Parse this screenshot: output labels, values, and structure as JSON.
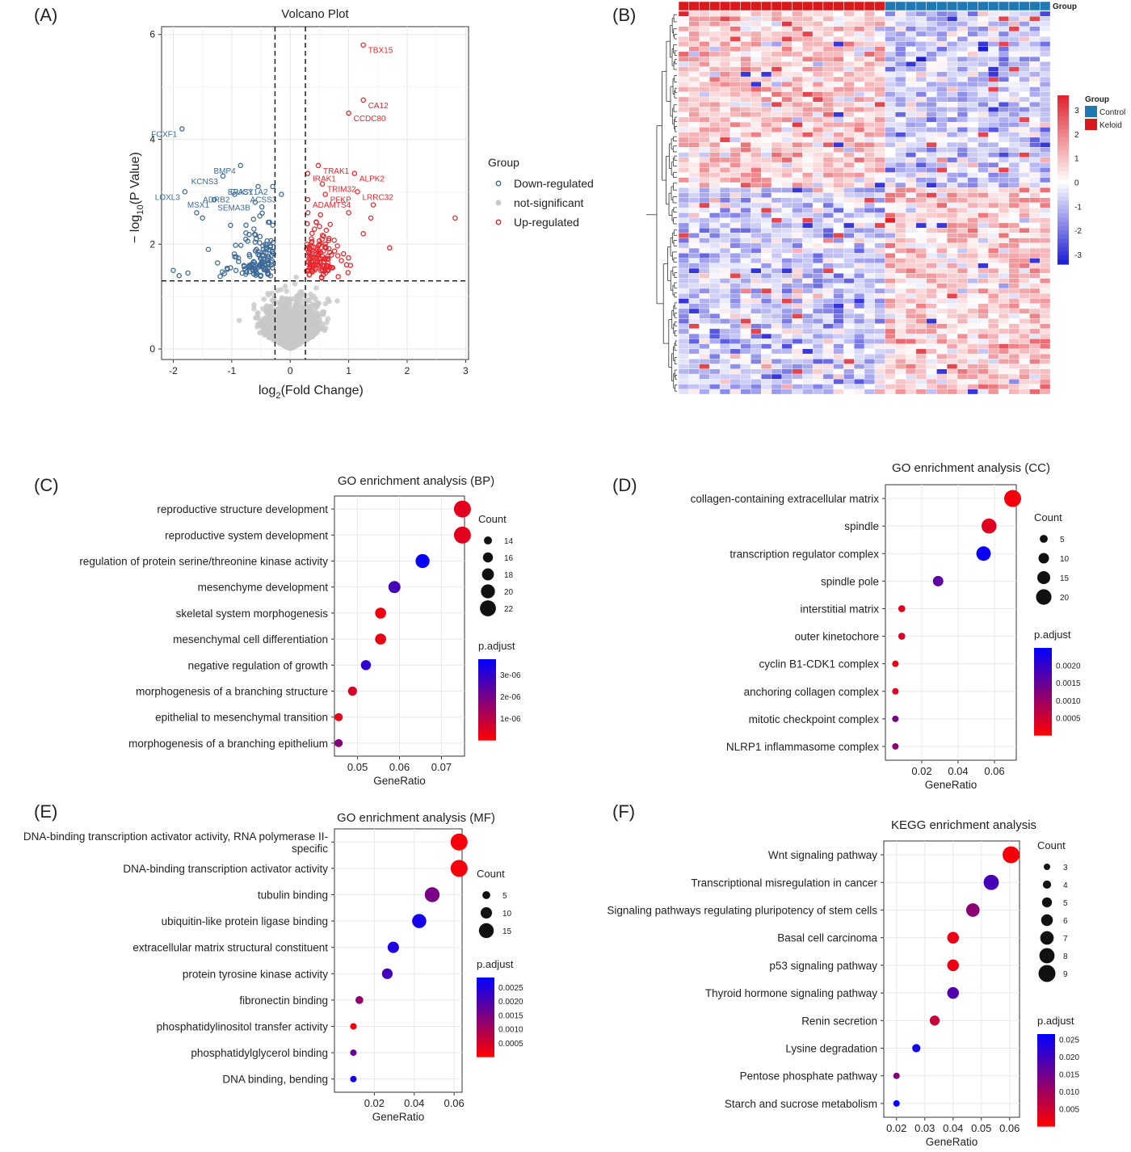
{
  "panel_labels": [
    "(A)",
    "(B)",
    "(C)",
    "(D)",
    "(E)",
    "(F)"
  ],
  "colors": {
    "up": "#e8262c",
    "down": "#3e6a98",
    "ns": "#c8c8c8",
    "keloid": "#d9191c",
    "control": "#1f78b4",
    "heat_low": "#1b1bd6",
    "heat_mid": "#ffffff",
    "heat_high": "#e0212a",
    "padj_low": "#ff0000",
    "padj_high": "#0000ff"
  },
  "chart_data": [
    {
      "id": "A",
      "type": "scatter",
      "title": "Volcano Plot",
      "xlabel": "log2(Fold Change)",
      "ylabel": "− log10(P Value)",
      "xlim": [
        -2.2,
        3.05
      ],
      "ylim": [
        -0.2,
        6.15
      ],
      "x_ticks": [
        -2,
        -1,
        0,
        1,
        2,
        3
      ],
      "y_ticks": [
        0,
        2,
        4,
        6
      ],
      "thresholds": {
        "x": [
          -0.26,
          0.26
        ],
        "y": 1.3
      },
      "legend_title": "Group",
      "legend_position": "right",
      "legend": [
        "Down-regulated",
        "not-significant",
        "Up-regulated"
      ],
      "grid": true,
      "labeled_points": [
        {
          "label": "TBX15",
          "x": 1.25,
          "y": 5.8,
          "group": "up"
        },
        {
          "label": "CA12",
          "x": 1.25,
          "y": 4.75,
          "group": "up"
        },
        {
          "label": "CCDC80",
          "x": 1.0,
          "y": 4.5,
          "group": "up"
        },
        {
          "label": "TRAK1",
          "x": 0.48,
          "y": 3.5,
          "group": "up"
        },
        {
          "label": "ALPK2",
          "x": 1.1,
          "y": 3.35,
          "group": "up"
        },
        {
          "label": "TRIM32",
          "x": 0.55,
          "y": 3.15,
          "group": "up"
        },
        {
          "label": "IRAK1",
          "x": 0.3,
          "y": 3.35,
          "group": "up"
        },
        {
          "label": "LRRC32",
          "x": 1.15,
          "y": 3.0,
          "group": "up"
        },
        {
          "label": "PFKP",
          "x": 0.6,
          "y": 2.95,
          "group": "up"
        },
        {
          "label": "ADAMTS4",
          "x": 0.3,
          "y": 2.85,
          "group": "up"
        },
        {
          "label": "FOXF1",
          "x": -1.85,
          "y": 4.2,
          "group": "down"
        },
        {
          "label": "LOXL3",
          "x": -1.8,
          "y": 3.0,
          "group": "down"
        },
        {
          "label": "KCNS3",
          "x": -1.15,
          "y": 3.3,
          "group": "down"
        },
        {
          "label": "BMP4",
          "x": -0.85,
          "y": 3.5,
          "group": "down"
        },
        {
          "label": "EPAS1",
          "x": -0.55,
          "y": 3.1,
          "group": "down"
        },
        {
          "label": "GUCY1A2",
          "x": -0.3,
          "y": 3.1,
          "group": "down"
        },
        {
          "label": "ADRB2",
          "x": -0.95,
          "y": 2.95,
          "group": "down"
        },
        {
          "label": "MSX1",
          "x": -1.3,
          "y": 2.85,
          "group": "down"
        },
        {
          "label": "SEMA3B",
          "x": -0.6,
          "y": 2.8,
          "group": "down"
        },
        {
          "label": "ACSS3",
          "x": -0.15,
          "y": 2.95,
          "group": "down"
        }
      ]
    },
    {
      "id": "B",
      "type": "heatmap",
      "annotation_title": "Group",
      "legend_title": "Group",
      "legend_items": [
        "Control",
        "Keloid"
      ],
      "colorbar_ticks": [
        3,
        2,
        1,
        0,
        -1,
        -2,
        -3
      ],
      "colorbar_range": [
        -3.4,
        3.6
      ],
      "n_keloid": 20,
      "n_control": 16,
      "n_rows": 76,
      "row_split": 35
    },
    {
      "id": "C",
      "type": "scatter",
      "title": "GO enrichment analysis (BP)",
      "xlabel": "GeneRatio",
      "xlim": [
        0.0445,
        0.0755
      ],
      "x_ticks": [
        0.05,
        0.06,
        0.07
      ],
      "x_tick_labels": [
        "0.05",
        "0.06",
        "0.07"
      ],
      "categories": [
        "reproductive structure development",
        "reproductive system development",
        "regulation of protein serine/threonine kinase activity",
        "mesenchyme development",
        "skeletal system morphogenesis",
        "mesenchymal cell differentiation",
        "negative regulation of growth",
        "morphogenesis of a branching structure",
        "epithelial to mesenchymal transition",
        "morphogenesis of a branching epithelium"
      ],
      "gene_ratio": [
        0.075,
        0.075,
        0.0655,
        0.0588,
        0.0555,
        0.0555,
        0.052,
        0.0488,
        0.0455,
        0.0455
      ],
      "count": [
        23,
        23,
        20,
        18,
        17,
        17,
        16,
        15,
        14,
        14
      ],
      "p_adjust": [
        4e-07,
        4e-07,
        3.6e-06,
        2.7e-06,
        2e-07,
        3e-07,
        3e-06,
        6e-07,
        3e-07,
        1.8e-06
      ],
      "padj_range": [
        0,
        3.7e-06
      ],
      "size_legend": {
        "title": "Count",
        "values": [
          14,
          16,
          18,
          20,
          22
        ]
      },
      "color_legend": {
        "title": "p.adjust",
        "ticks": [
          3e-06,
          2e-06,
          1e-06
        ],
        "tick_labels": [
          "3e-06",
          "2e-06",
          "1e-06"
        ]
      },
      "size_range": [
        14,
        23
      ]
    },
    {
      "id": "D",
      "type": "scatter",
      "title": "GO enrichment analysis (CC)",
      "xlabel": "GeneRatio",
      "xlim": [
        0.0,
        0.072
      ],
      "x_ticks": [
        0.02,
        0.04,
        0.06
      ],
      "x_tick_labels": [
        "0.02",
        "0.04",
        "0.06"
      ],
      "categories": [
        "collagen-containing extracellular matrix",
        "spindle",
        "transcription regulator complex",
        "spindle pole",
        "interstitial matrix",
        "outer kinetochore",
        "cyclin B1-CDK1 complex",
        "anchoring collagen complex",
        "mitotic checkpoint complex",
        "NLRP1 inflammasome complex"
      ],
      "gene_ratio": [
        0.07,
        0.057,
        0.054,
        0.029,
        0.009,
        0.009,
        0.0055,
        0.0055,
        0.0055,
        0.0055
      ],
      "count": [
        23,
        19,
        18,
        10,
        3,
        3,
        2,
        2,
        2,
        2
      ],
      "p_adjust": [
        0.0001,
        0.0003,
        0.0024,
        0.0016,
        0.0003,
        0.0004,
        0.0002,
        0.0003,
        0.0013,
        0.0011
      ],
      "padj_range": [
        0,
        0.0025
      ],
      "size_legend": {
        "title": "Count",
        "values": [
          5,
          10,
          15,
          20
        ]
      },
      "color_legend": {
        "title": "p.adjust",
        "ticks": [
          0.002,
          0.0015,
          0.001,
          0.0005
        ],
        "tick_labels": [
          "0.0020",
          "0.0015",
          "0.0010",
          "0.0005"
        ]
      },
      "size_range": [
        2,
        23
      ]
    },
    {
      "id": "E",
      "type": "scatter",
      "title": "GO enrichment analysis (MF)",
      "xlabel": "GeneRatio",
      "xlim": [
        0.0,
        0.064
      ],
      "x_ticks": [
        0.02,
        0.04,
        0.06
      ],
      "x_tick_labels": [
        "0.02",
        "0.04",
        "0.06"
      ],
      "categories": [
        "DNA-binding transcription activator activity, RNA polymerase II-specific",
        "DNA-binding transcription activator activity",
        "tubulin binding",
        "ubiquitin-like protein ligase binding",
        "extracellular matrix structural constituent",
        "protein tyrosine kinase activity",
        "fibronectin binding",
        "phosphatidylinositol transfer activity",
        "phosphatidylglycerol binding",
        "DNA binding, bending"
      ],
      "category_lines": [
        [
          "DNA-binding transcription activator activity, RNA polymerase II-",
          "specific"
        ]
      ],
      "gene_ratio": [
        0.0625,
        0.0625,
        0.049,
        0.0425,
        0.0295,
        0.0265,
        0.0125,
        0.0095,
        0.0095,
        0.0095
      ],
      "count": [
        18,
        18,
        15,
        14,
        10,
        9,
        5,
        3,
        3,
        3
      ],
      "p_adjust": [
        0.0001,
        0.0001,
        0.0015,
        0.0026,
        0.0025,
        0.0021,
        0.0012,
        0.0001,
        0.0017,
        0.0026
      ],
      "padj_range": [
        0,
        0.00285
      ],
      "size_legend": {
        "title": "Count",
        "values": [
          5,
          10,
          15
        ]
      },
      "color_legend": {
        "title": "p.adjust",
        "ticks": [
          0.0025,
          0.002,
          0.0015,
          0.001,
          0.0005
        ],
        "tick_labels": [
          "0.0025",
          "0.0020",
          "0.0015",
          "0.0010",
          "0.0005"
        ]
      },
      "size_range": [
        3,
        18
      ]
    },
    {
      "id": "F",
      "type": "scatter",
      "title": "KEGG enrichment analysis",
      "xlabel": "GeneRatio",
      "xlim": [
        0.0155,
        0.0635
      ],
      "x_ticks": [
        0.02,
        0.03,
        0.04,
        0.05,
        0.06
      ],
      "x_tick_labels": [
        "0.02",
        "0.03",
        "0.04",
        "0.05",
        "0.06"
      ],
      "categories": [
        "Wnt signaling pathway",
        "Transcriptional misregulation in cancer",
        "Signaling pathways regulating pluripotency of stem cells",
        "Basal cell carcinoma",
        "p53 signaling pathway",
        "Thyroid hormone signaling pathway",
        "Renin secretion",
        "Lysine degradation",
        "Pentose phosphate pathway",
        "Starch and sucrose metabolism"
      ],
      "gene_ratio": [
        0.0605,
        0.0535,
        0.047,
        0.04,
        0.04,
        0.04,
        0.0335,
        0.027,
        0.02,
        0.02
      ],
      "count": [
        9,
        8,
        7,
        6,
        6,
        6,
        5,
        4,
        3,
        3
      ],
      "p_adjust": [
        0.001,
        0.019,
        0.012,
        0.002,
        0.002,
        0.018,
        0.006,
        0.025,
        0.013,
        0.026
      ],
      "padj_range": [
        0,
        0.0265
      ],
      "size_legend": {
        "title": "Count",
        "values": [
          3,
          4,
          5,
          6,
          7,
          8,
          9
        ]
      },
      "color_legend": {
        "title": "p.adjust",
        "ticks": [
          0.025,
          0.02,
          0.015,
          0.01,
          0.005
        ],
        "tick_labels": [
          "0.025",
          "0.020",
          "0.015",
          "0.010",
          "0.005"
        ]
      },
      "size_range": [
        3,
        9
      ]
    }
  ]
}
